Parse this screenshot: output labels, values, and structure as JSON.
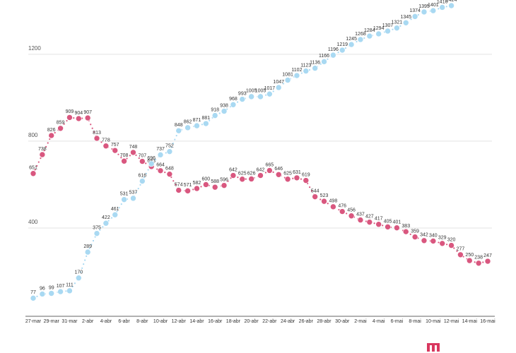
{
  "chart_data": {
    "type": "line",
    "categories": [
      "27-mar",
      null,
      "29-mar",
      null,
      "31-mar",
      null,
      "2-abr",
      null,
      "4-abr",
      null,
      "6-abr",
      null,
      "8-abr",
      null,
      "10-abr",
      null,
      "12-abr",
      null,
      "14-abr",
      null,
      "16-abr",
      null,
      "18-abr",
      null,
      "20-abr",
      null,
      "22-abr",
      null,
      "24-abr",
      null,
      "26-abr",
      null,
      "28-abr",
      null,
      "30-abr",
      null,
      "2-mai",
      null,
      "4-mai",
      null,
      "6-mai",
      null,
      "8-mai",
      null,
      "10-mai",
      null,
      "12-mai",
      null,
      "14-mai",
      null,
      "16-mai"
    ],
    "series": [
      {
        "color": "#d9577f",
        "values": [
          651,
          738,
          826,
          859,
          909,
          904,
          907,
          813,
          778,
          757,
          708,
          748,
          707,
          683,
          664,
          648,
          574,
          571,
          582,
          600,
          588,
          596,
          642,
          625,
          626,
          642,
          665,
          646,
          625,
          631,
          619,
          544,
          523,
          498,
          476,
          456,
          437,
          427,
          417,
          405,
          401,
          383,
          359,
          342,
          340,
          329,
          320,
          277,
          250,
          238,
          247
        ]
      },
      {
        "color": "#a9d9f2",
        "values": [
          77,
          96,
          99,
          107,
          111,
          170,
          289,
          375,
          422,
          461,
          531,
          537,
          616,
          696,
          737,
          752,
          848,
          862,
          871,
          881,
          918,
          938,
          968,
          993,
          1005,
          1005,
          1017,
          1047,
          1081,
          1102,
          1123,
          1136,
          1166,
          1196,
          1219,
          1245,
          1268,
          1284,
          1294,
          1307,
          1321,
          1345,
          1374,
          1395,
          1401,
          1416,
          1424,
          null,
          null,
          null,
          null
        ]
      }
    ],
    "ylim": [
      0,
      1450
    ],
    "yticks": [
      400,
      800,
      1200
    ],
    "grid": true
  }
}
